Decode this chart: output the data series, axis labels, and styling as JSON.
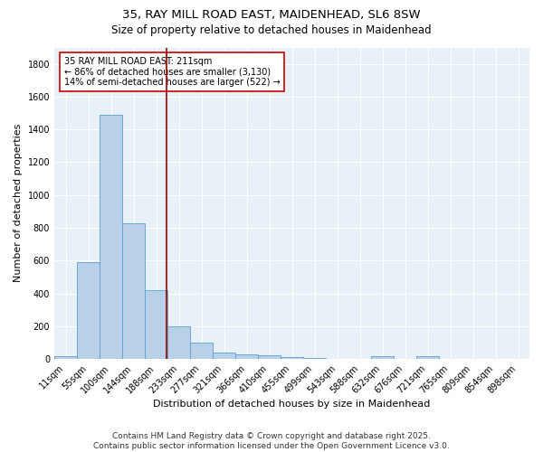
{
  "title_line1": "35, RAY MILL ROAD EAST, MAIDENHEAD, SL6 8SW",
  "title_line2": "Size of property relative to detached houses in Maidenhead",
  "xlabel": "Distribution of detached houses by size in Maidenhead",
  "ylabel": "Number of detached properties",
  "bar_color": "#b8d0e8",
  "bar_edge_color": "#5a9fd4",
  "bg_color": "#e8f0f8",
  "grid_color": "#ffffff",
  "annotation_box_color": "#cc0000",
  "vline_color": "#990000",
  "categories": [
    "11sqm",
    "55sqm",
    "100sqm",
    "144sqm",
    "188sqm",
    "233sqm",
    "277sqm",
    "321sqm",
    "366sqm",
    "410sqm",
    "455sqm",
    "499sqm",
    "543sqm",
    "588sqm",
    "632sqm",
    "676sqm",
    "721sqm",
    "765sqm",
    "809sqm",
    "854sqm",
    "898sqm"
  ],
  "values": [
    15,
    590,
    1490,
    830,
    420,
    200,
    100,
    38,
    30,
    22,
    10,
    8,
    0,
    0,
    18,
    0,
    15,
    0,
    0,
    0,
    0
  ],
  "vline_x_index": 4.45,
  "annotation_text": "35 RAY MILL ROAD EAST: 211sqm\n← 86% of detached houses are smaller (3,130)\n14% of semi-detached houses are larger (522) →",
  "ylim": [
    0,
    1900
  ],
  "yticks": [
    0,
    200,
    400,
    600,
    800,
    1000,
    1200,
    1400,
    1600,
    1800
  ],
  "footnote": "Contains HM Land Registry data © Crown copyright and database right 2025.\nContains public sector information licensed under the Open Government Licence v3.0.",
  "title_fontsize": 9.5,
  "subtitle_fontsize": 8.5,
  "xlabel_fontsize": 8,
  "ylabel_fontsize": 8,
  "tick_fontsize": 7,
  "annotation_fontsize": 7,
  "footnote_fontsize": 6.5
}
